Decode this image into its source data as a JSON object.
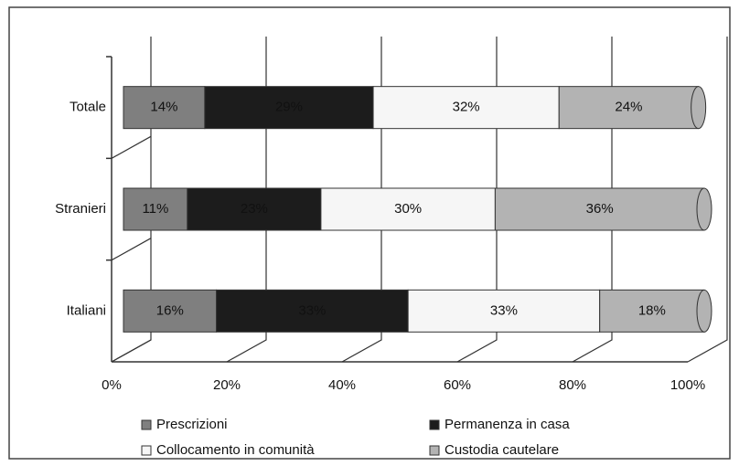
{
  "chart_data": {
    "type": "bar",
    "orientation": "horizontal",
    "stacked": true,
    "categories": [
      "Totale",
      "Stranieri",
      "Italiani"
    ],
    "series": [
      {
        "name": "Prescrizioni",
        "color": "#7f7f7f",
        "values": [
          14,
          11,
          16
        ],
        "value_labels": [
          "14%",
          "11%",
          "16%"
        ]
      },
      {
        "name": "Permanenza in casa",
        "color": "#1c1c1c",
        "values": [
          29,
          23,
          33
        ],
        "value_labels": [
          "29%",
          "23%",
          "33%"
        ]
      },
      {
        "name": "Collocamento in comunità",
        "color": "#f6f6f6",
        "values": [
          32,
          30,
          33
        ],
        "value_labels": [
          "32%",
          "30%",
          "33%"
        ]
      },
      {
        "name": "Custodia cautelare",
        "color": "#b3b3b3",
        "values": [
          24,
          36,
          18
        ],
        "value_labels": [
          "24%",
          "36%",
          "18%"
        ]
      }
    ],
    "xlim": [
      0,
      100
    ],
    "xticks": [
      {
        "value": 0,
        "label": "0%"
      },
      {
        "value": 20,
        "label": "20%"
      },
      {
        "value": 40,
        "label": "40%"
      },
      {
        "value": 60,
        "label": "60%"
      },
      {
        "value": 80,
        "label": "80%"
      },
      {
        "value": 100,
        "label": "100%"
      }
    ],
    "grid": true,
    "legend": "bottom"
  }
}
